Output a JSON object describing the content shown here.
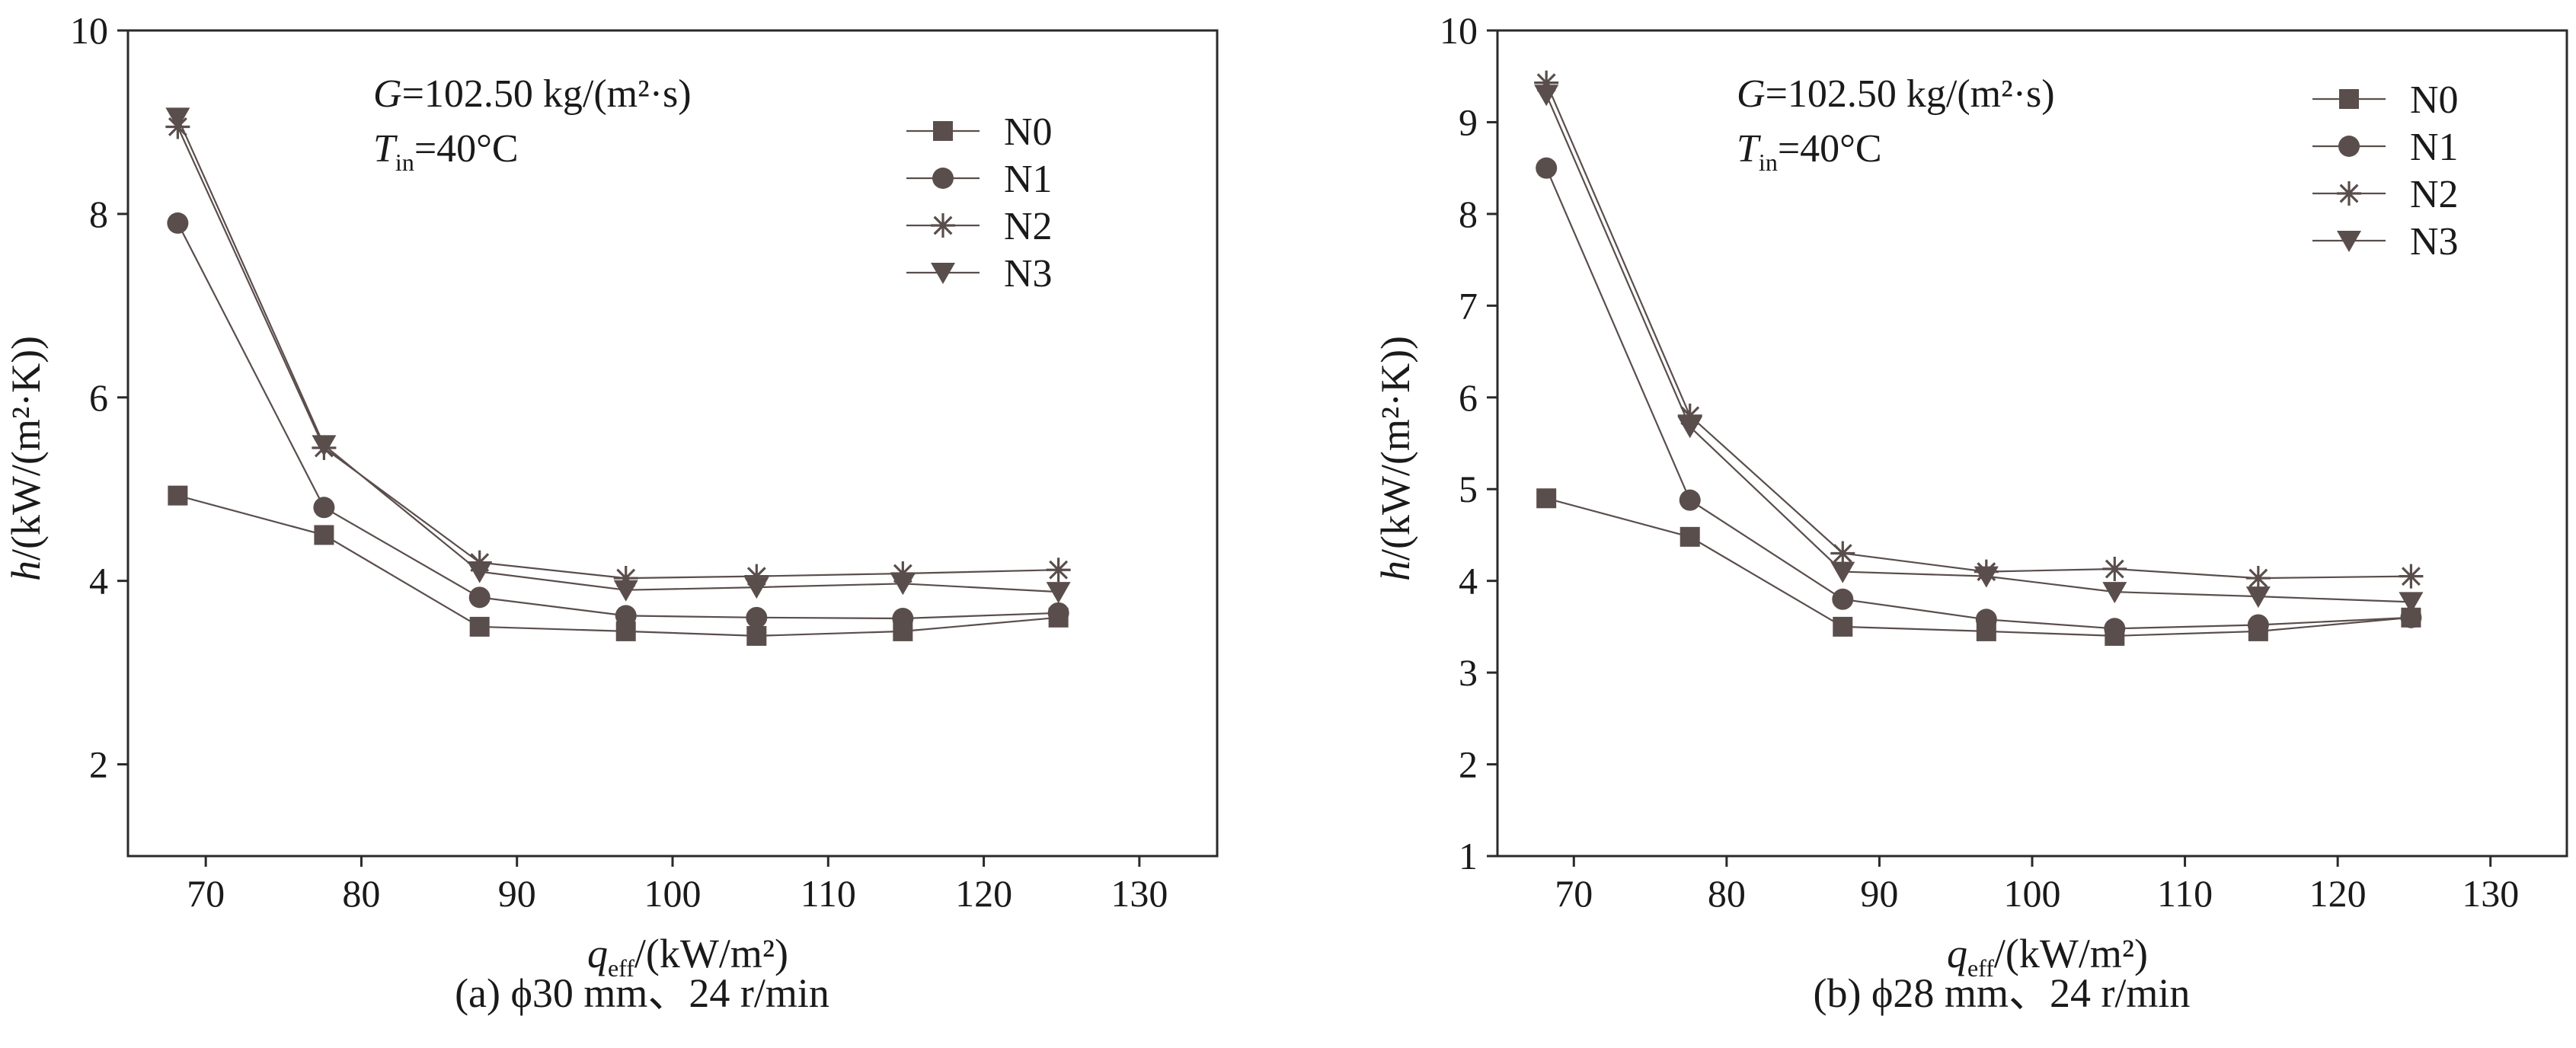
{
  "colors": {
    "series": "#5a4e4c",
    "axis": "#2a2a2a",
    "text": "#1a1a1a"
  },
  "chart_data": [
    {
      "type": "line",
      "caption": "(a) ϕ30 mm、24 r/min",
      "annotation": {
        "g_symbol": "G",
        "g_value": "=102.50 kg/(m²·s)",
        "t_symbol": "T",
        "t_sub": "in",
        "t_value": "=40°C"
      },
      "xlabel": {
        "symbol": "q",
        "sub": "eff",
        "unit": "/(kW/m²)"
      },
      "ylabel": {
        "symbol": "h",
        "unit": "/(kW/(m²·K))"
      },
      "xlim": [
        65,
        135
      ],
      "ylim": [
        1,
        10
      ],
      "xticks": [
        70,
        80,
        90,
        100,
        110,
        120,
        130
      ],
      "yticks": [
        2,
        4,
        6,
        8,
        10
      ],
      "x": [
        68.2,
        77.6,
        87.6,
        97.0,
        105.4,
        114.8,
        124.8
      ],
      "series": [
        {
          "name": "N0",
          "marker": "square",
          "values": [
            4.93,
            4.5,
            3.5,
            3.45,
            3.4,
            3.45,
            3.6
          ]
        },
        {
          "name": "N1",
          "marker": "circle",
          "values": [
            7.9,
            4.8,
            3.82,
            3.62,
            3.6,
            3.59,
            3.65
          ]
        },
        {
          "name": "N2",
          "marker": "star",
          "values": [
            8.95,
            5.45,
            4.2,
            4.03,
            4.05,
            4.08,
            4.12
          ]
        },
        {
          "name": "N3",
          "marker": "triangle-down",
          "values": [
            9.05,
            5.48,
            4.1,
            3.9,
            3.93,
            3.97,
            3.88
          ]
        }
      ]
    },
    {
      "type": "line",
      "caption": "(b) ϕ28 mm、24 r/min",
      "annotation": {
        "g_symbol": "G",
        "g_value": "=102.50 kg/(m²·s)",
        "t_symbol": "T",
        "t_sub": "in",
        "t_value": "=40°C"
      },
      "xlabel": {
        "symbol": "q",
        "sub": "eff",
        "unit": "/(kW/m²)"
      },
      "ylabel": {
        "symbol": "h",
        "unit": "/(kW/(m²·K))"
      },
      "xlim": [
        65,
        135
      ],
      "ylim": [
        1,
        10
      ],
      "xticks": [
        70,
        80,
        90,
        100,
        110,
        120,
        130
      ],
      "yticks": [
        1,
        2,
        3,
        4,
        5,
        6,
        7,
        8,
        9,
        10
      ],
      "x": [
        68.2,
        77.6,
        87.6,
        97.0,
        105.4,
        114.8,
        124.8
      ],
      "series": [
        {
          "name": "N0",
          "marker": "square",
          "values": [
            4.9,
            4.48,
            3.5,
            3.45,
            3.4,
            3.45,
            3.6
          ]
        },
        {
          "name": "N1",
          "marker": "circle",
          "values": [
            8.5,
            4.88,
            3.8,
            3.58,
            3.48,
            3.52,
            3.6
          ]
        },
        {
          "name": "N2",
          "marker": "star",
          "values": [
            9.43,
            5.8,
            4.3,
            4.1,
            4.13,
            4.03,
            4.05
          ]
        },
        {
          "name": "N3",
          "marker": "triangle-down",
          "values": [
            9.3,
            5.68,
            4.1,
            4.05,
            3.88,
            3.83,
            3.77
          ]
        }
      ]
    }
  ]
}
